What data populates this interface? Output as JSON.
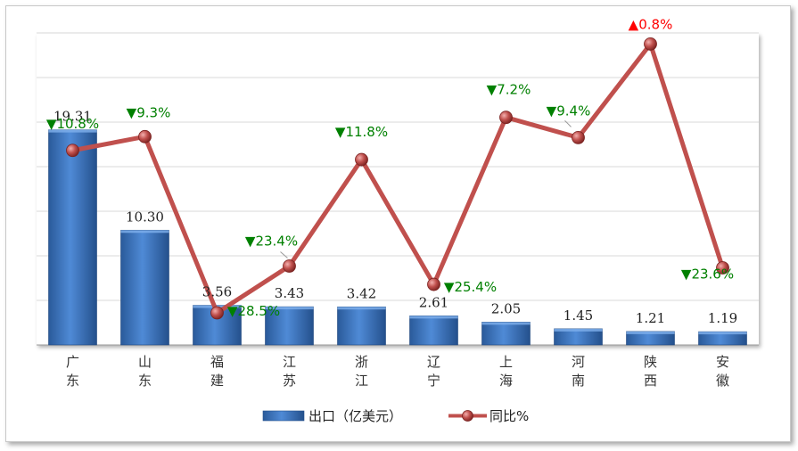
{
  "chart_data": {
    "type": "bar+line",
    "categories": [
      "广\n东",
      "山\n东",
      "福\n建",
      "江\n苏",
      "浙\n江",
      "辽\n宁",
      "上\n海",
      "河\n南",
      "陕\n西",
      "安\n徽"
    ],
    "series": [
      {
        "name": "出口（亿美元）",
        "type": "bar",
        "values": [
          19.31,
          10.3,
          3.56,
          3.43,
          3.42,
          2.61,
          2.05,
          1.45,
          1.21,
          1.19
        ],
        "labels": [
          "19.31",
          "10.30",
          "3.56",
          "3.43",
          "3.42",
          "2.61",
          "2.05",
          "1.45",
          "1.21",
          "1.19"
        ],
        "color": "#3a72b8"
      },
      {
        "name": "同比%",
        "type": "line",
        "values": [
          -10.8,
          -9.3,
          -28.5,
          -23.4,
          -11.8,
          -25.4,
          -7.2,
          -9.4,
          0.8,
          -23.6
        ],
        "labels": [
          "▼10.8%",
          "▼9.3%",
          "▼28.5%",
          "▼23.4%",
          "▼11.8%",
          "▼25.4%",
          "▼7.2%",
          "▼9.4%",
          "▲0.8%",
          "▼23.6%"
        ],
        "color": "#c0504d"
      }
    ],
    "bar_ylim": [
      0,
      28
    ],
    "line_ylim": [
      -32,
      2
    ],
    "grid": true,
    "legend_position": "bottom",
    "colors": {
      "bar": "#3a72b8",
      "line": "#c0504d",
      "down": "#008000",
      "up": "#ff0000",
      "grid": "#d9d9d9"
    }
  }
}
